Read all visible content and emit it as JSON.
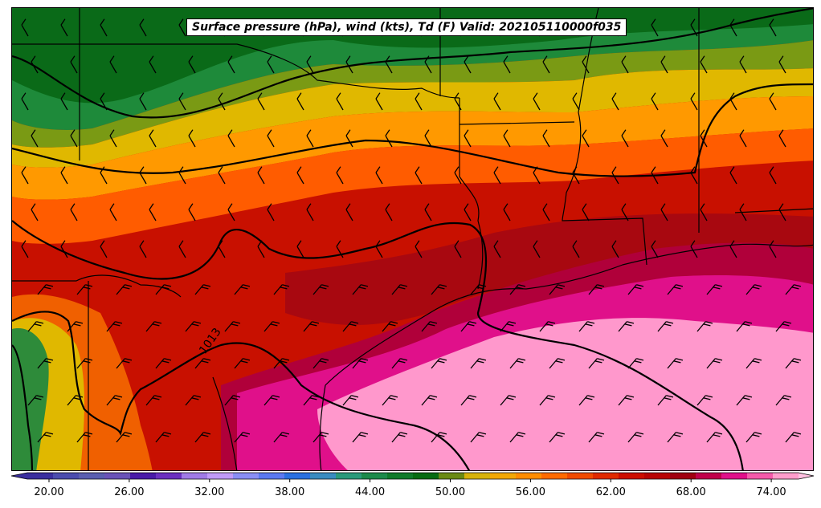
{
  "title": "Surface pressure (hPa), wind (kts), Td (F) Valid: 202105110000f035",
  "isobar_label": "1013",
  "colorbar": {
    "tick_labels": [
      "20.00",
      "26.00",
      "32.00",
      "38.00",
      "44.00",
      "50.00",
      "56.00",
      "62.00",
      "68.00",
      "74.00"
    ],
    "colors": [
      "#3a2e9e",
      "#4b4cae",
      "#5a5eb0",
      "#6a52b8",
      "#4a1aa8",
      "#6b2fc0",
      "#a07ae6",
      "#c09af8",
      "#8a8ef5",
      "#5b78f0",
      "#2a6fe0",
      "#3a8cc0",
      "#2a9a7a",
      "#1c8a4a",
      "#0f7a2a",
      "#066b12",
      "#6a8a14",
      "#d7b20a",
      "#f2a705",
      "#ff8c00",
      "#ff6a00",
      "#f04a00",
      "#e02a00",
      "#cc0e00",
      "#b80404",
      "#a00010",
      "#c0004a",
      "#e0108a",
      "#f45aaa",
      "#ff9ccb"
    ]
  },
  "legend_colors": {
    "green_dark": "#0b6e1c",
    "green": "#2e8b3a",
    "olive": "#7a9a14",
    "yellow": "#e0b800",
    "orange": "#ff9900",
    "orange_red": "#ff5c00",
    "red_orange": "#f23c00",
    "red": "#d21400",
    "dark_red": "#b00808",
    "crimson": "#a80020",
    "magenta": "#d4007a",
    "pink": "#f05aa8",
    "light_pink": "#ff9ccf"
  },
  "icons": [
    "wind-barb-icon",
    "isobar-line",
    "state-border"
  ]
}
